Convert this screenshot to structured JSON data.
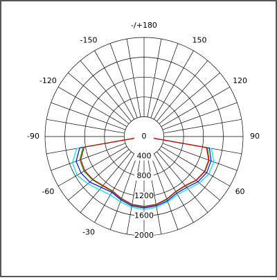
{
  "chart_data": {
    "type": "polar",
    "x": [
      -90,
      -80,
      -70,
      -60,
      -50,
      -40,
      -30,
      -20,
      -10,
      0,
      10,
      20,
      30,
      40,
      50,
      60,
      70,
      80,
      90
    ],
    "series": [
      {
        "color": "#00e0e0",
        "values": [
          0,
          1380,
          1540,
          1560,
          1480,
          1400,
          1360,
          1400,
          1450,
          1470,
          1450,
          1400,
          1350,
          1380,
          1460,
          1510,
          1500,
          1380,
          0
        ]
      },
      {
        "color": "#0000ff",
        "values": [
          0,
          1320,
          1460,
          1470,
          1430,
          1340,
          1300,
          1360,
          1420,
          1440,
          1420,
          1380,
          1320,
          1340,
          1420,
          1460,
          1440,
          1340,
          0
        ]
      },
      {
        "color": "#00a000",
        "values": [
          0,
          1250,
          1380,
          1400,
          1360,
          1300,
          1280,
          1340,
          1400,
          1420,
          1400,
          1350,
          1290,
          1300,
          1380,
          1420,
          1400,
          1300,
          0
        ]
      },
      {
        "color": "#e00000",
        "values": [
          0,
          1230,
          1360,
          1380,
          1350,
          1290,
          1270,
          1330,
          1390,
          1410,
          1390,
          1340,
          1280,
          1290,
          1370,
          1410,
          1390,
          1280,
          0
        ]
      }
    ],
    "rlim": [
      0,
      2000
    ],
    "rticks": [
      0,
      400,
      800,
      1200,
      1600,
      2000
    ],
    "thetaticks": [
      {
        "value": 180,
        "label": "-/+180"
      },
      150,
      120,
      90,
      60,
      -30,
      -60,
      -90,
      -120,
      -150
    ]
  }
}
